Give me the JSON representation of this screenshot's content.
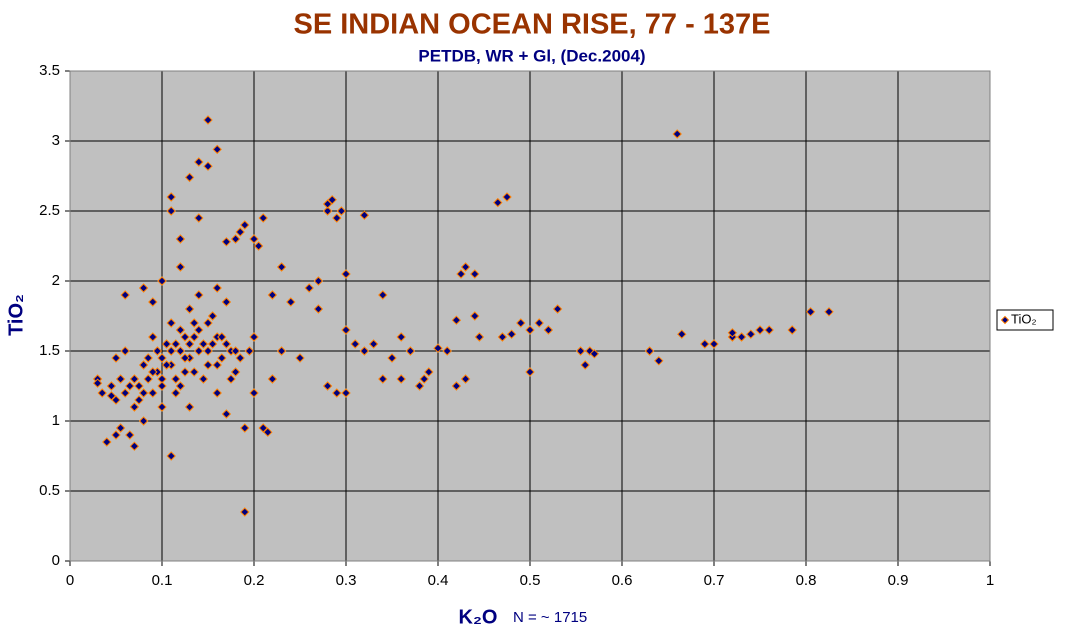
{
  "chart_data": {
    "type": "scatter",
    "title": "SE INDIAN OCEAN RISE, 77 - 137E",
    "subtitle": "PETDB, WR + Gl, (Dec.2004)",
    "x_label": "K₂O",
    "y_label": "TiO₂",
    "annotation": "N = ~ 1715",
    "xlim": [
      0,
      1
    ],
    "ylim": [
      0,
      3.5
    ],
    "xticks": [
      0,
      0.1,
      0.2,
      0.3,
      0.4,
      0.5,
      0.6,
      0.7,
      0.8,
      0.9,
      1
    ],
    "yticks": [
      0,
      0.5,
      1,
      1.5,
      2,
      2.5,
      3,
      3.5
    ],
    "grid": true,
    "legend": "right",
    "x": [
      0.03,
      0.03,
      0.035,
      0.04,
      0.045,
      0.05,
      0.05,
      0.055,
      0.06,
      0.06,
      0.06,
      0.065,
      0.07,
      0.07,
      0.07,
      0.075,
      0.08,
      0.08,
      0.08,
      0.085,
      0.09,
      0.09,
      0.09,
      0.095,
      0.1,
      0.1,
      0.1,
      0.1,
      0.105,
      0.11,
      0.11,
      0.11,
      0.11,
      0.11,
      0.115,
      0.12,
      0.12,
      0.12,
      0.12,
      0.125,
      0.13,
      0.13,
      0.13,
      0.13,
      0.135,
      0.14,
      0.14,
      0.14,
      0.14,
      0.145,
      0.15,
      0.15,
      0.15,
      0.15,
      0.155,
      0.16,
      0.16,
      0.16,
      0.16,
      0.165,
      0.17,
      0.17,
      0.17,
      0.175,
      0.18,
      0.18,
      0.185,
      0.19,
      0.19,
      0.19,
      0.195,
      0.2,
      0.2,
      0.2,
      0.205,
      0.21,
      0.21,
      0.215,
      0.22,
      0.22,
      0.23,
      0.23,
      0.24,
      0.25,
      0.26,
      0.27,
      0.27,
      0.28,
      0.28,
      0.28,
      0.285,
      0.29,
      0.29,
      0.295,
      0.3,
      0.3,
      0.3,
      0.31,
      0.32,
      0.32,
      0.33,
      0.34,
      0.34,
      0.35,
      0.36,
      0.36,
      0.37,
      0.38,
      0.385,
      0.39,
      0.4,
      0.41,
      0.42,
      0.42,
      0.425,
      0.43,
      0.43,
      0.44,
      0.44,
      0.445,
      0.47,
      0.465,
      0.475,
      0.48,
      0.49,
      0.5,
      0.5,
      0.51,
      0.52,
      0.53,
      0.555,
      0.56,
      0.565,
      0.57,
      0.63,
      0.64,
      0.66,
      0.665,
      0.69,
      0.7,
      0.72,
      0.72,
      0.73,
      0.74,
      0.75,
      0.76,
      0.785,
      0.805,
      0.825,
      0.095,
      0.1,
      0.105,
      0.115,
      0.12,
      0.125,
      0.13,
      0.135,
      0.14,
      0.145,
      0.15,
      0.155,
      0.16,
      0.165,
      0.17,
      0.175,
      0.18,
      0.185,
      0.08,
      0.085,
      0.09,
      0.075,
      0.065,
      0.055,
      0.05,
      0.045,
      0.11,
      0.115,
      0.125,
      0.135
    ],
    "series": [
      {
        "name": "TiO₂",
        "color": "#000080",
        "edge_color": "#ff8000",
        "values": [
          1.3,
          1.27,
          1.2,
          0.85,
          1.18,
          1.15,
          0.9,
          0.95,
          1.2,
          1.5,
          1.9,
          0.9,
          0.82,
          1.3,
          1.1,
          1.25,
          1.95,
          1.4,
          1.0,
          1.3,
          1.2,
          1.6,
          1.85,
          1.35,
          1.45,
          2.0,
          1.1,
          1.3,
          1.55,
          2.6,
          2.5,
          0.75,
          1.7,
          1.4,
          1.2,
          2.1,
          1.5,
          1.65,
          2.3,
          1.35,
          2.74,
          1.8,
          1.45,
          1.1,
          1.6,
          2.85,
          2.45,
          1.5,
          1.9,
          1.3,
          3.15,
          2.82,
          1.7,
          1.4,
          1.55,
          2.94,
          1.95,
          1.6,
          1.2,
          1.45,
          2.28,
          1.85,
          1.05,
          1.5,
          2.3,
          1.35,
          2.35,
          2.4,
          0.95,
          0.35,
          1.5,
          2.3,
          1.6,
          1.2,
          2.25,
          2.45,
          0.95,
          0.92,
          1.9,
          1.3,
          2.1,
          1.5,
          1.85,
          1.45,
          1.95,
          2.0,
          1.8,
          2.5,
          2.55,
          1.25,
          2.58,
          2.45,
          1.2,
          2.5,
          1.2,
          2.05,
          1.65,
          1.55,
          2.47,
          1.5,
          1.55,
          1.9,
          1.3,
          1.45,
          1.6,
          1.3,
          1.5,
          1.25,
          1.3,
          1.35,
          1.52,
          1.5,
          1.72,
          1.25,
          2.05,
          2.1,
          1.3,
          2.05,
          1.75,
          1.6,
          1.6,
          2.56,
          2.6,
          1.62,
          1.7,
          1.65,
          1.35,
          1.7,
          1.65,
          1.8,
          1.5,
          1.4,
          1.5,
          1.48,
          1.5,
          1.43,
          3.05,
          1.62,
          1.55,
          1.55,
          1.6,
          1.63,
          1.6,
          1.62,
          1.65,
          1.65,
          1.65,
          1.78,
          1.78,
          1.5,
          1.25,
          1.4,
          1.55,
          1.25,
          1.6,
          1.55,
          1.35,
          1.65,
          1.55,
          1.5,
          1.75,
          1.4,
          1.6,
          1.55,
          1.3,
          1.5,
          1.45,
          1.2,
          1.45,
          1.35,
          1.15,
          1.25,
          1.3,
          1.45,
          1.25,
          1.5,
          1.3,
          1.45,
          1.7
        ]
      }
    ]
  }
}
